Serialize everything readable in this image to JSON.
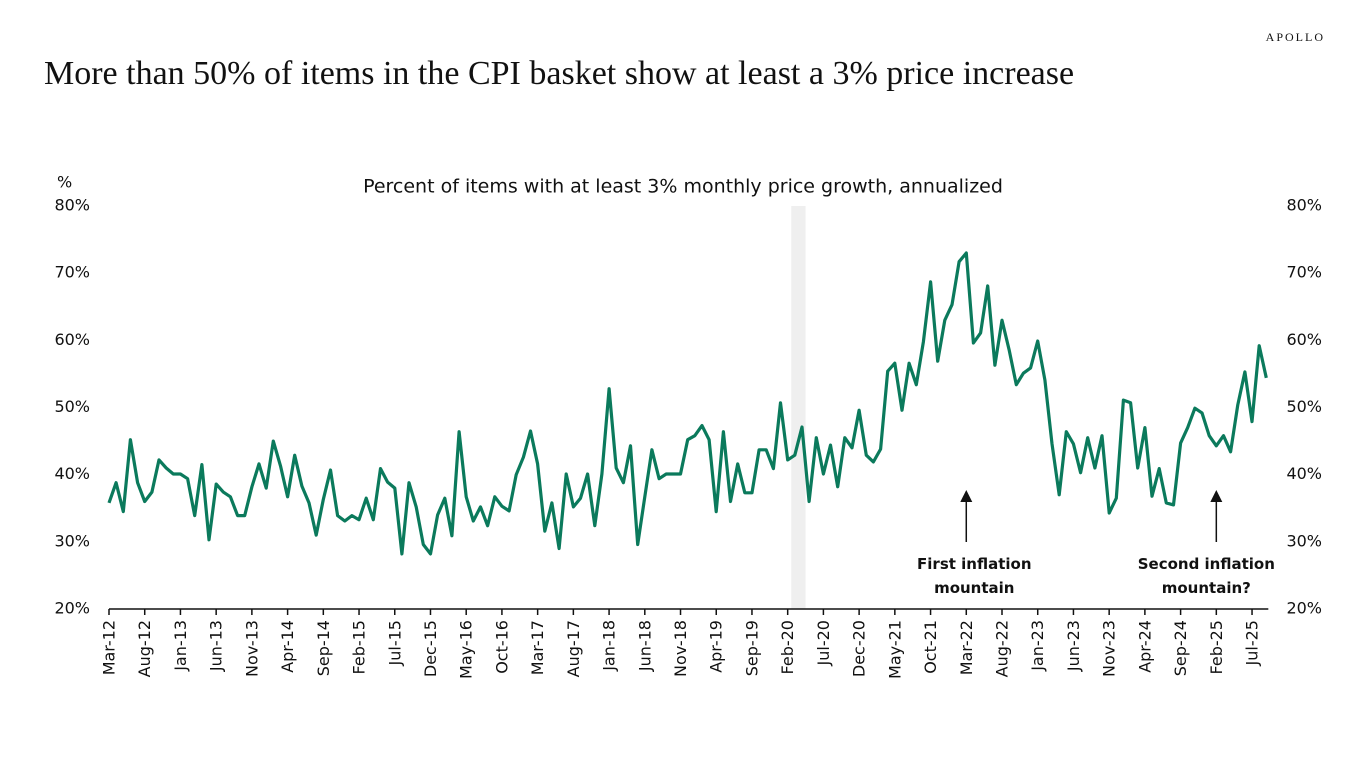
{
  "brand": "APOLLO",
  "chart_data": {
    "type": "line",
    "title": "More than 50% of items in the CPI basket show at least a 3% price increase",
    "subtitle": "Percent of items with at least 3% monthly price growth, annualized",
    "y_unit_label": "%",
    "color": "#0b7a5c",
    "categories": [
      "Mar-12",
      null,
      null,
      null,
      null,
      "Aug-12",
      null,
      null,
      null,
      null,
      "Jan-13",
      null,
      null,
      null,
      null,
      "Jun-13",
      null,
      null,
      null,
      null,
      "Nov-13",
      null,
      null,
      null,
      null,
      "Apr-14",
      null,
      null,
      null,
      null,
      "Sep-14",
      null,
      null,
      null,
      null,
      "Feb-15",
      null,
      null,
      null,
      null,
      "Jul-15",
      null,
      null,
      null,
      null,
      "Dec-15",
      null,
      null,
      null,
      null,
      "May-16",
      null,
      null,
      null,
      null,
      "Oct-16",
      null,
      null,
      null,
      null,
      "Mar-17",
      null,
      null,
      null,
      null,
      "Aug-17",
      null,
      null,
      null,
      null,
      "Jan-18",
      null,
      null,
      null,
      null,
      "Jun-18",
      null,
      null,
      null,
      null,
      "Nov-18",
      null,
      null,
      null,
      null,
      "Apr-19",
      null,
      null,
      null,
      null,
      "Sep-19",
      null,
      null,
      null,
      null,
      "Feb-20",
      null,
      null,
      null,
      null,
      "Jul-20",
      null,
      null,
      null,
      null,
      "Dec-20",
      null,
      null,
      null,
      null,
      "May-21",
      null,
      null,
      null,
      null,
      "Oct-21",
      null,
      null,
      null,
      null,
      "Mar-22",
      null,
      null,
      null,
      null,
      "Aug-22",
      null,
      null,
      null,
      null,
      "Jan-23",
      null,
      null,
      null,
      null,
      "Jun-23",
      null,
      null,
      null,
      null,
      "Nov-23",
      null,
      null,
      null,
      null,
      "Apr-24",
      null,
      null,
      null,
      null,
      "Sep-24",
      null,
      null,
      null,
      null,
      "Feb-25",
      null,
      null,
      null,
      null,
      "Jul-25",
      null,
      null
    ],
    "values": [
      35.8,
      38.8,
      34.5,
      45.2,
      38.8,
      36,
      37.4,
      42.2,
      41,
      40.1,
      40.1,
      39.4,
      33.9,
      41.5,
      30.3,
      38.6,
      37.4,
      36.7,
      33.9,
      33.9,
      38.2,
      41.6,
      38,
      45,
      41.3,
      36.7,
      42.9,
      38.3,
      35.8,
      31,
      36.3,
      40.7,
      33.9,
      33.1,
      33.9,
      33.3,
      36.5,
      33.3,
      40.9,
      38.9,
      38,
      28.2,
      38.8,
      35.2,
      29.6,
      28.2,
      34,
      36.5,
      30.9,
      46.4,
      36.7,
      33.1,
      35.2,
      32.4,
      36.7,
      35.3,
      34.6,
      40,
      42.6,
      46.5,
      41.6,
      31.6,
      35.8,
      29,
      40.1,
      35.2,
      36.5,
      40.1,
      32.4,
      40.1,
      52.8,
      41,
      38.8,
      44.3,
      29.6,
      36.7,
      43.7,
      39.4,
      40.1,
      40.1,
      40.1,
      45.2,
      45.8,
      47.3,
      45.2,
      34.5,
      46.4,
      36,
      41.6,
      37.3,
      37.3,
      43.7,
      43.7,
      40.9,
      50.7,
      42.2,
      42.9,
      47.1,
      36,
      45.5,
      40.1,
      44.4,
      38.2,
      45.5,
      44,
      49.6,
      42.9,
      41.9,
      43.8,
      55.4,
      56.6,
      49.6,
      56.6,
      53.4,
      59.8,
      68.7,
      56.9,
      63,
      65.3,
      71.7,
      73,
      59.6,
      61.1,
      68.1,
      56.3,
      63,
      58.6,
      53.4,
      55.1,
      55.9,
      59.9,
      54.1,
      44.6,
      37,
      46.4,
      44.6,
      40.3,
      45.5,
      41,
      45.8,
      34.3,
      36.5,
      51.1,
      50.7,
      41,
      47,
      36.8,
      40.9,
      35.8,
      35.5,
      44.7,
      47,
      49.9,
      49.2,
      45.8,
      44.3,
      45.8,
      43.4,
      50.4,
      55.3,
      47.9,
      59.2,
      54.4
    ],
    "ylim": [
      20,
      80
    ],
    "yticks": [
      {
        "value": 20,
        "label": "20%"
      },
      {
        "value": 30,
        "label": "30%"
      },
      {
        "value": 40,
        "label": "40%"
      },
      {
        "value": 50,
        "label": "50%"
      },
      {
        "value": 60,
        "label": "60%"
      },
      {
        "value": 70,
        "label": "70%"
      },
      {
        "value": 80,
        "label": "80%"
      }
    ],
    "shaded_range": [
      96,
      97
    ],
    "annotations": [
      {
        "text": "First inflation mountain",
        "at": "Mar-22"
      },
      {
        "text": "Second inflation mountain?",
        "at": "Feb-25"
      }
    ]
  }
}
